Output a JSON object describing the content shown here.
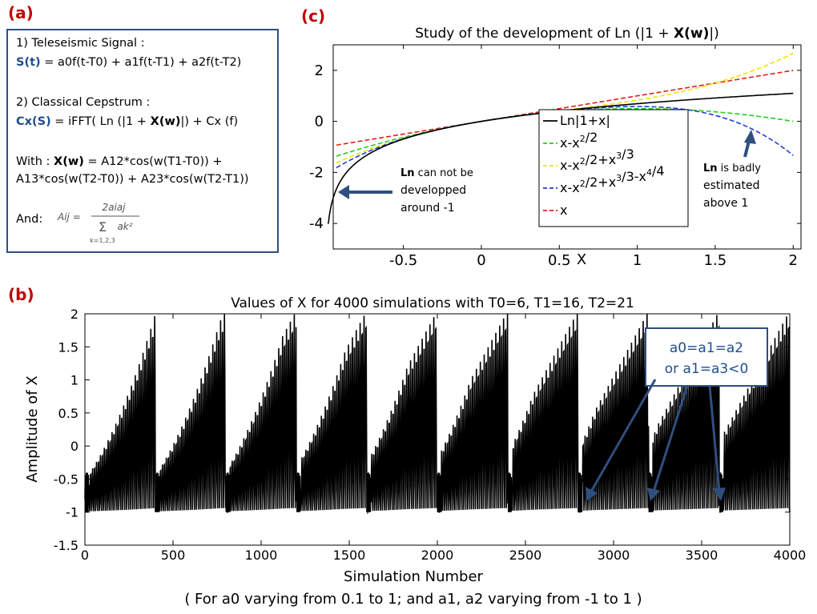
{
  "panel_a": {
    "tag": "(a)",
    "line1": "1) Teleseismic Signal :",
    "s_label": "S(t)",
    "s_formula": " =  a0f(t-T0) + a1f(t-T1) + a2f(t-T2)",
    "line2": "2) Classical Cepstrum :",
    "cx_label": "Cx(S)",
    "cx_formula_a": " =  iFFT( Ln (|1 + ",
    "cx_formula_x": "X(w)",
    "cx_formula_b": "|)  + Cx (f)",
    "with_label": "With : ",
    "with_x": "X(w)",
    "with_formula": " =   A12*cos(w(T1-T0)) +",
    "with_line2": "A13*cos(w(T2-T0)) + A23*cos(w(T2-T1))",
    "and_label": "And:",
    "formula_lhs": "Aij =",
    "formula_num": "2aiaj",
    "formula_den": "ak²",
    "formula_sum": "Σ",
    "formula_sub": "k=1,2,3"
  },
  "panel_c": {
    "tag": "(c)",
    "chart_data": {
      "type": "line",
      "title_a": "Study of the development of Ln (|1 + ",
      "title_b": "X(w)",
      "title_c": "|)",
      "xlabel": "X",
      "xlim": [
        -0.95,
        2.05
      ],
      "ylim": [
        -5,
        3
      ],
      "xticks": [
        "-0.5",
        "0",
        "0.5",
        "1",
        "1.5",
        "2"
      ],
      "xtick_values": [
        -0.5,
        0,
        0.5,
        1,
        1.5,
        2
      ],
      "yticks": [
        "2",
        "0",
        "-2",
        "-4"
      ],
      "ytick_values": [
        2,
        0,
        -2,
        -4
      ],
      "series": [
        {
          "name": "Ln|1+x|",
          "color": "#000000",
          "dash": "none"
        },
        {
          "name": "x-x2/2",
          "color": "#22cc22",
          "dash": "dashed"
        },
        {
          "name": "x-x2/2+x3/3",
          "color": "#f2e400",
          "dash": "dashed"
        },
        {
          "name": "x-x2/2+x3/3-x4/4",
          "color": "#1f3fd6",
          "dash": "dashed"
        },
        {
          "name": "x",
          "color": "#e02020",
          "dash": "dashed"
        }
      ],
      "legend_placement": "bottom-center",
      "annotations": {
        "left_bold": "Ln",
        "left_rest1": " can not be",
        "left_rest2": "developped",
        "left_rest3": "around -1",
        "right_bold": "Ln",
        "right_rest1": " is badly",
        "right_rest2": "estimated",
        "right_rest3": "above 1"
      }
    }
  },
  "panel_b": {
    "tag": "(b)",
    "chart_data": {
      "type": "line",
      "title": "Values of X for 4000 simulations with T0=6, T1=16, T2=21",
      "xlabel": "Simulation Number",
      "ylabel": "Amplitude of X",
      "caption": "( For a0 varying from 0.1 to 1; and a1, a2 varying from -1 to 1 )",
      "xlim": [
        0,
        4000
      ],
      "ylim": [
        -1.5,
        2
      ],
      "xticks": [
        "0",
        "500",
        "1000",
        "1500",
        "2000",
        "2500",
        "3000",
        "3500",
        "4000"
      ],
      "xtick_values": [
        0,
        500,
        1000,
        1500,
        2000,
        2500,
        3000,
        3500,
        4000
      ],
      "yticks": [
        "2",
        "1.5",
        "1",
        "0.5",
        "0",
        "-0.5",
        "-1",
        "-1.5"
      ],
      "ytick_values": [
        2,
        1.5,
        1,
        0.5,
        0,
        -0.5,
        -1,
        -1.5
      ],
      "series": [
        {
          "color": "#000000"
        }
      ],
      "callout_line1": "a0=a1=a2",
      "callout_line2": "or a1=a3<0"
    }
  }
}
